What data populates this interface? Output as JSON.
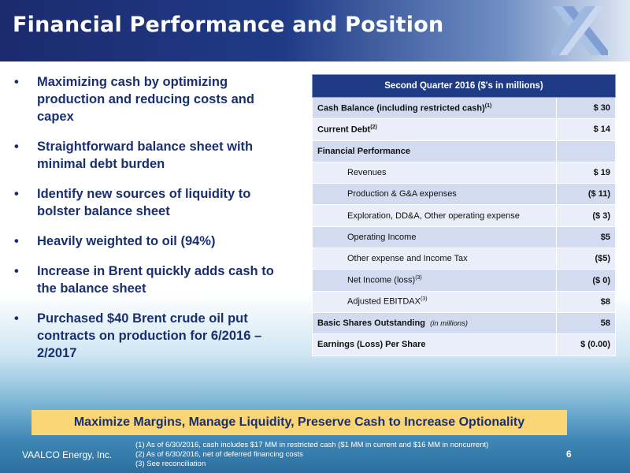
{
  "header": {
    "title": "Financial Performance and Position",
    "logo_icon": "vaalco-logo-icon"
  },
  "bullets": [
    "Maximizing cash by optimizing production and reducing costs and capex",
    "Straightforward balance sheet with minimal debt burden",
    "Identify new sources of liquidity to bolster balance sheet",
    "Heavily weighted to oil (94%)",
    "Increase in Brent quickly adds cash to the balance sheet",
    "Purchased $40 Brent crude oil put contracts on production for 6/2016 – 2/2017"
  ],
  "table": {
    "header": "Second Quarter 2016 ($'s in millions)",
    "rows": [
      {
        "label": "Cash Balance (including restricted cash)",
        "sup": "(1)",
        "value": "$ 30"
      },
      {
        "label": "Current Debt",
        "sup": "(2)",
        "value": "$ 14"
      },
      {
        "label": "Financial Performance",
        "value": ""
      },
      {
        "label": "Revenues",
        "value": "$ 19"
      },
      {
        "label": "Production & G&A expenses",
        "value": "($ 11)"
      },
      {
        "label": "Exploration, DD&A, Other operating expense",
        "value": "($ 3)"
      },
      {
        "label": "Operating Income",
        "value": "$5"
      },
      {
        "label": "Other expense and Income Tax",
        "value": "($5)"
      },
      {
        "label": "Net Income (loss)",
        "sup": "(3)",
        "value": "($ 0)"
      },
      {
        "label": "Adjusted EBITDAX",
        "sup": "(3)",
        "value": "$8"
      },
      {
        "label": "Basic Shares Outstanding",
        "note": "(in millions)",
        "value": "58"
      },
      {
        "label": "Earnings (Loss) Per Share",
        "value": "$  (0.00)"
      }
    ]
  },
  "banner": "Maximize Margins, Manage Liquidity, Preserve Cash to Increase Optionality",
  "footer": {
    "company": "VAALCO Energy, Inc.",
    "page": "6",
    "footnotes": [
      "(1)   As of 6/30/2016, cash includes $17 MM in restricted cash ($1 MM in current and $16 MM in noncurrent)",
      "(2)   As of 6/30/2016, net of deferred financing costs",
      "(3)   See reconciliation"
    ]
  },
  "colors": {
    "header_blue": "#1f3b86",
    "text_blue": "#1a2f6e",
    "banner_yellow": "#f9d576",
    "row_dark": "#d2dbef",
    "row_light": "#e9eef8"
  }
}
